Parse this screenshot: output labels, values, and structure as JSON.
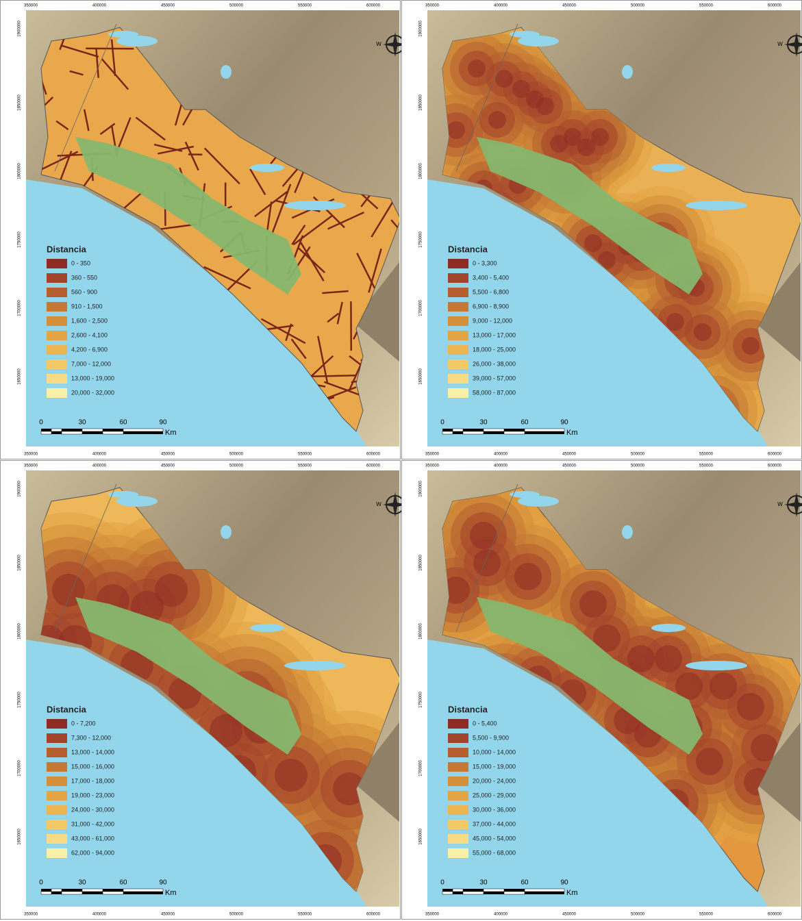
{
  "axes": {
    "x_labels": [
      "350000",
      "400000",
      "450000",
      "500000",
      "550000",
      "600000"
    ],
    "y_labels": [
      "1900000",
      "1850000",
      "1800000",
      "1750000",
      "1700000",
      "1650000"
    ]
  },
  "scale_bar": {
    "labels": [
      "0",
      "30",
      "60",
      "90"
    ],
    "unit": "Km"
  },
  "compass": {
    "west": "W"
  },
  "legend_colors": [
    "#8e2b24",
    "#a4432c",
    "#b55e30",
    "#c47834",
    "#d38f3a",
    "#e2a444",
    "#ecb552",
    "#f3c866",
    "#f7dc85",
    "#faf0a8"
  ],
  "panels": [
    {
      "legend": {
        "title": "Distancia",
        "classes": [
          "0 - 350",
          "360 - 550",
          "560 - 900",
          "910 - 1,500",
          "1,600 - 2,500",
          "2,600 - 4,100",
          "4,200 - 6,900",
          "7,000 - 12,000",
          "13,000 - 19,000",
          "20,000 - 32,000"
        ]
      }
    },
    {
      "legend": {
        "title": "Distancia",
        "classes": [
          "0 - 3,300",
          "3,400 - 5,400",
          "5,500 - 6,800",
          "6,900 - 8,900",
          "9,000 - 12,000",
          "13,000 - 17,000",
          "18,000 - 25,000",
          "26,000 - 38,000",
          "39,000 - 57,000",
          "58,000 - 87,000"
        ]
      }
    },
    {
      "legend": {
        "title": "Distancia",
        "classes": [
          "0 - 7,200",
          "7,300 - 12,000",
          "13,000 - 14,000",
          "15,000 - 16,000",
          "17,000 - 18,000",
          "19,000 - 23,000",
          "24,000 - 30,000",
          "31,000 - 42,000",
          "43,000 - 61,000",
          "62,000 - 94,000"
        ]
      }
    },
    {
      "legend": {
        "title": "Distancia",
        "classes": [
          "0 - 5,400",
          "5,500 - 9,900",
          "10,000 - 14,000",
          "15,000 - 19,000",
          "20,000 - 24,000",
          "25,000 - 29,000",
          "30,000 - 36,000",
          "37,000 - 44,000",
          "45,000 - 54,000",
          "55,000 - 68,000"
        ]
      }
    }
  ]
}
